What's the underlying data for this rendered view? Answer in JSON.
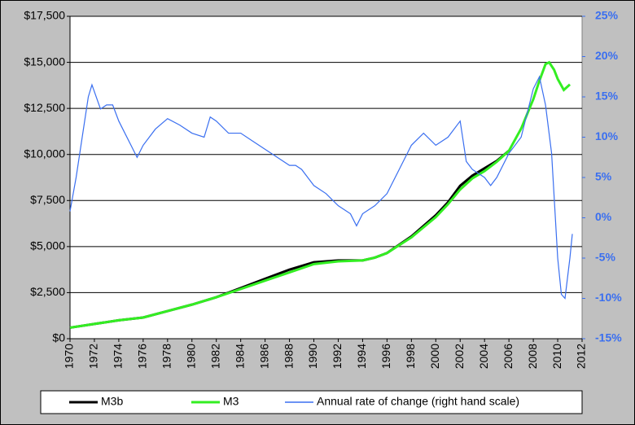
{
  "chart_data": {
    "type": "line",
    "xlim": [
      1970,
      2012
    ],
    "xticks": [
      1970,
      1972,
      1974,
      1976,
      1978,
      1980,
      1982,
      1984,
      1986,
      1988,
      1990,
      1992,
      1994,
      1996,
      1998,
      2000,
      2002,
      2004,
      2006,
      2008,
      2010,
      2012
    ],
    "ylim": [
      0,
      17500
    ],
    "yticks": [
      {
        "value": 0,
        "label": "$0"
      },
      {
        "value": 2500,
        "label": "$2,500"
      },
      {
        "value": 5000,
        "label": "$5,000"
      },
      {
        "value": 7500,
        "label": "$7,500"
      },
      {
        "value": 10000,
        "label": "$10,000"
      },
      {
        "value": 12500,
        "label": "$12,500"
      },
      {
        "value": 15000,
        "label": "$15,000"
      },
      {
        "value": 17500,
        "label": "$17,500"
      }
    ],
    "y2lim": [
      -15,
      25
    ],
    "y2ticks": [
      {
        "value": -15,
        "label": "-15%"
      },
      {
        "value": -10,
        "label": "-10%"
      },
      {
        "value": -5,
        "label": "-5%"
      },
      {
        "value": 0,
        "label": "0%"
      },
      {
        "value": 5,
        "label": "5%"
      },
      {
        "value": 10,
        "label": "10%"
      },
      {
        "value": 15,
        "label": "15%"
      },
      {
        "value": 20,
        "label": "20%"
      },
      {
        "value": 25,
        "label": "25%"
      }
    ],
    "grid": true,
    "legend": "bottom",
    "series": [
      {
        "name": "M3b",
        "color": "#000000",
        "x": [
          1970,
          1972,
          1974,
          1976,
          1978,
          1980,
          1982,
          1984,
          1986,
          1988,
          1990,
          1992,
          1994,
          1995,
          1996,
          1998,
          2000,
          2001,
          2002,
          2003,
          2004,
          2005,
          2006
        ],
        "values": [
          600,
          800,
          1000,
          1150,
          1500,
          1850,
          2250,
          2750,
          3250,
          3750,
          4150,
          4250,
          4250,
          4400,
          4650,
          5550,
          6700,
          7400,
          8300,
          8850,
          9250,
          9650,
          10200
        ]
      },
      {
        "name": "M3",
        "color": "#33ee22",
        "x": [
          1970,
          1972,
          1974,
          1976,
          1978,
          1980,
          1982,
          1984,
          1986,
          1988,
          1990,
          1992,
          1994,
          1995,
          1996,
          1998,
          2000,
          2001,
          2002,
          2003,
          2004,
          2005,
          2006,
          2007,
          2008,
          2008.5,
          2009,
          2009.3,
          2009.7,
          2010,
          2010.5,
          2011
        ],
        "values": [
          600,
          800,
          1000,
          1150,
          1500,
          1850,
          2250,
          2700,
          3150,
          3600,
          4050,
          4200,
          4250,
          4400,
          4650,
          5500,
          6600,
          7300,
          8100,
          8700,
          9100,
          9600,
          10200,
          11400,
          13000,
          14000,
          14900,
          15000,
          14600,
          14100,
          13500,
          13800
        ]
      },
      {
        "name": "Annual rate of change (right hand scale)",
        "color": "#3a6ff0",
        "axis": "y2",
        "x": [
          1970,
          1970.5,
          1971,
          1971.5,
          1971.8,
          1972.5,
          1973,
          1973.5,
          1974,
          1975,
          1975.5,
          1976,
          1977,
          1978,
          1979,
          1980,
          1981,
          1981.5,
          1982,
          1983,
          1984,
          1985,
          1986,
          1987,
          1988,
          1988.5,
          1989,
          1990,
          1991,
          1992,
          1993,
          1993.5,
          1994,
          1995,
          1996,
          1997,
          1998,
          1999,
          2000,
          2001,
          2002,
          2002.5,
          2003,
          2004,
          2004.5,
          2005,
          2006,
          2007,
          2008,
          2008.5,
          2009,
          2009.5,
          2010,
          2010.3,
          2010.6,
          2011,
          2011.2
        ],
        "values": [
          0.8,
          5,
          10,
          15,
          16.5,
          13.5,
          14,
          14,
          12,
          9,
          7.5,
          9,
          11,
          12.3,
          11.5,
          10.5,
          10,
          12.5,
          12,
          10.5,
          10.5,
          9.5,
          8.5,
          7.5,
          6.5,
          6.5,
          6,
          4,
          3,
          1.5,
          0.5,
          -1,
          0.5,
          1.5,
          3,
          6,
          9,
          10.5,
          9,
          10,
          12,
          7,
          6,
          5,
          4,
          5,
          8,
          10,
          16,
          17.5,
          14,
          8,
          -5,
          -9.5,
          -10,
          -5,
          -2
        ]
      }
    ]
  }
}
